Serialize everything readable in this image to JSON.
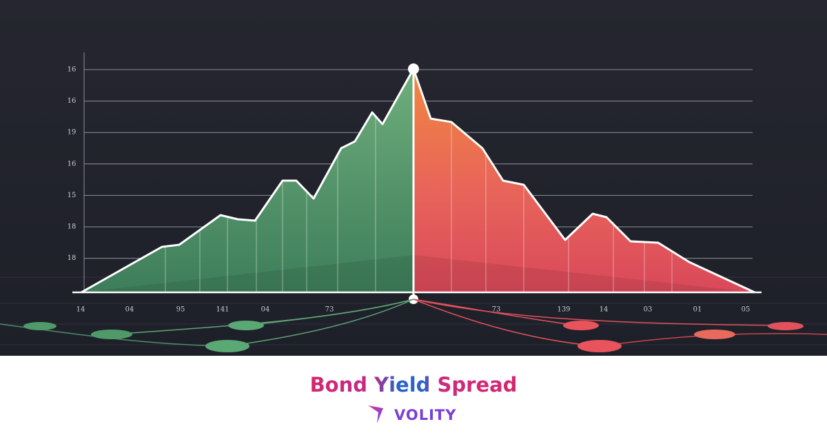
{
  "illustration": {
    "y_labels": [
      "16",
      "16",
      "19",
      "16",
      "15",
      "18",
      "18"
    ],
    "x_labels": [
      "14",
      "04",
      "95",
      "141",
      "04",
      "73",
      "73",
      "139",
      "14",
      "03",
      "01",
      "05"
    ]
  },
  "footer": {
    "title": "Bond Yield Spread",
    "brand": "VOLITY"
  }
}
